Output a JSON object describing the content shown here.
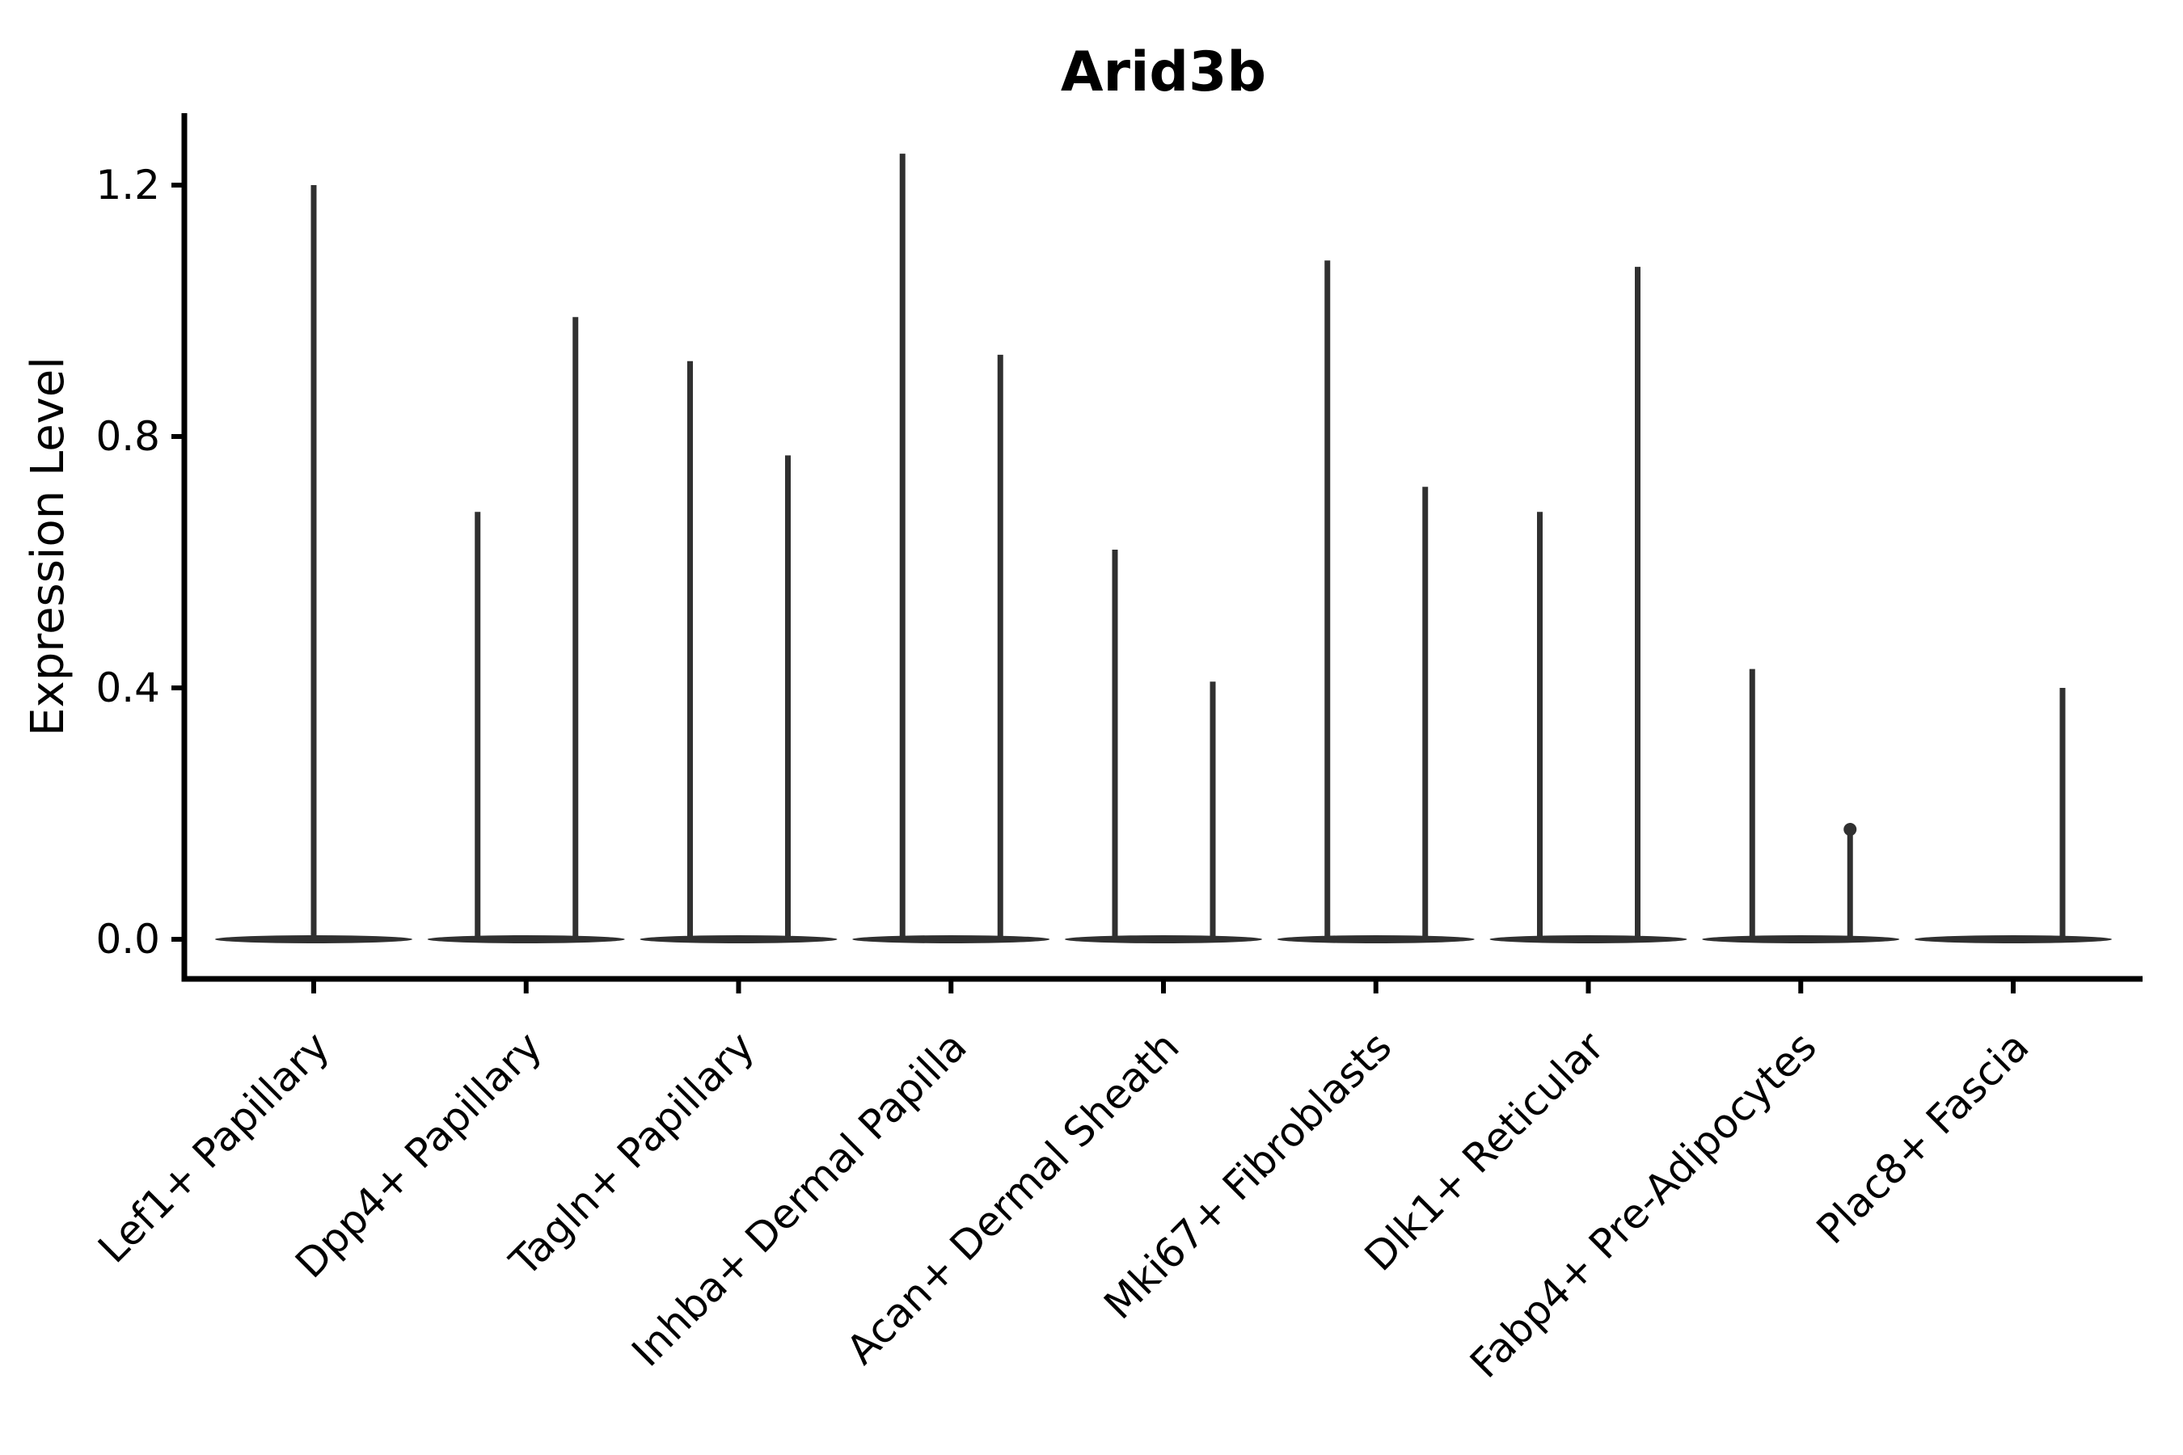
{
  "figure": {
    "background": "#ffffff"
  },
  "chart_data": {
    "type": "violin",
    "title": "Arid3b",
    "ylabel": "Expression Level",
    "xlabel": "",
    "grid": false,
    "legend": "none",
    "ylim": [
      -0.06,
      1.31
    ],
    "ytick_values": [
      0.0,
      0.4,
      0.8,
      1.2
    ],
    "ytick_labels": [
      "0.0",
      "0.4",
      "0.8",
      "1.2"
    ],
    "x_tick_rotation_deg": 45,
    "colors": {
      "violin": "#303030",
      "axis": "#000000",
      "text": "#000000",
      "background": "#ffffff"
    },
    "categories": [
      "Lef1+ Papillary",
      "Dpp4+ Papillary",
      "Tagln+ Papillary",
      "Inhba+ Dermal Papilla",
      "Acan+ Dermal Sheath",
      "Mki67+ Fibroblasts",
      "Dlk1+ Reticular",
      "Fabp4+ Pre-Adipocytes",
      "Plac8+ Fascia"
    ],
    "violins": [
      {
        "category": "Lef1+ Papillary",
        "spikes": [
          {
            "slot": "center",
            "max": 1.2
          }
        ]
      },
      {
        "category": "Dpp4+ Papillary",
        "spikes": [
          {
            "slot": "left",
            "max": 0.68
          },
          {
            "slot": "right",
            "max": 0.99
          }
        ]
      },
      {
        "category": "Tagln+ Papillary",
        "spikes": [
          {
            "slot": "left",
            "max": 0.92
          },
          {
            "slot": "right",
            "max": 0.77
          }
        ]
      },
      {
        "category": "Inhba+ Dermal Papilla",
        "spikes": [
          {
            "slot": "left",
            "max": 1.25
          },
          {
            "slot": "right",
            "max": 0.93
          }
        ]
      },
      {
        "category": "Acan+ Dermal Sheath",
        "spikes": [
          {
            "slot": "left",
            "max": 0.62
          },
          {
            "slot": "right",
            "max": 0.41
          }
        ]
      },
      {
        "category": "Mki67+ Fibroblasts",
        "spikes": [
          {
            "slot": "left",
            "max": 1.08
          },
          {
            "slot": "right",
            "max": 0.72
          }
        ]
      },
      {
        "category": "Dlk1+ Reticular",
        "spikes": [
          {
            "slot": "left",
            "max": 0.68
          },
          {
            "slot": "right",
            "max": 1.07
          }
        ]
      },
      {
        "category": "Fabp4+ Pre-Adipocytes",
        "spikes": [
          {
            "slot": "left",
            "max": 0.43
          },
          {
            "slot": "right",
            "max": 0.18,
            "cap": true
          }
        ]
      },
      {
        "category": "Plac8+ Fascia",
        "spikes": [
          {
            "slot": "right",
            "max": 0.4
          }
        ]
      }
    ]
  }
}
